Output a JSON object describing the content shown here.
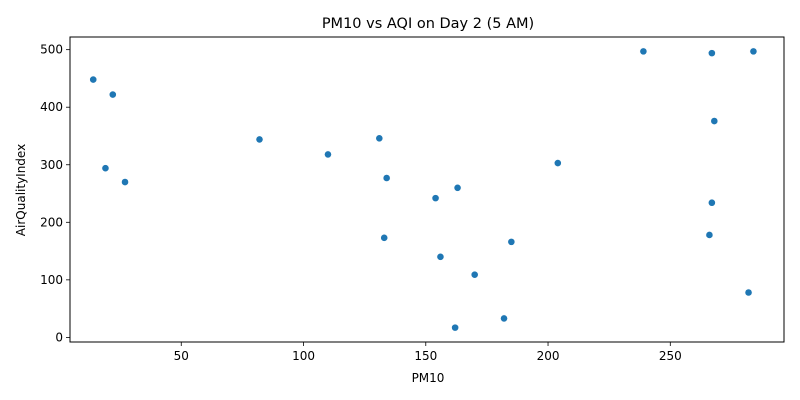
{
  "chart_data": {
    "type": "scatter",
    "title": "PM10 vs AQI on Day 2 (5 AM)",
    "xlabel": "PM10",
    "ylabel": "AirQualityIndex",
    "xlim": [
      4.5,
      296.5
    ],
    "ylim": [
      -8,
      522
    ],
    "xticks": [
      50,
      100,
      150,
      200,
      250
    ],
    "yticks": [
      0,
      100,
      200,
      300,
      400,
      500
    ],
    "grid": false,
    "color": "#1f77b4",
    "points": [
      {
        "x": 14,
        "y": 448
      },
      {
        "x": 22,
        "y": 422
      },
      {
        "x": 19,
        "y": 294
      },
      {
        "x": 27,
        "y": 270
      },
      {
        "x": 82,
        "y": 344
      },
      {
        "x": 110,
        "y": 318
      },
      {
        "x": 131,
        "y": 346
      },
      {
        "x": 134,
        "y": 277
      },
      {
        "x": 133,
        "y": 173
      },
      {
        "x": 154,
        "y": 242
      },
      {
        "x": 163,
        "y": 260
      },
      {
        "x": 156,
        "y": 140
      },
      {
        "x": 170,
        "y": 109
      },
      {
        "x": 162,
        "y": 17
      },
      {
        "x": 182,
        "y": 33
      },
      {
        "x": 185,
        "y": 166
      },
      {
        "x": 204,
        "y": 303
      },
      {
        "x": 239,
        "y": 497
      },
      {
        "x": 267,
        "y": 494
      },
      {
        "x": 284,
        "y": 497
      },
      {
        "x": 268,
        "y": 376
      },
      {
        "x": 267,
        "y": 234
      },
      {
        "x": 266,
        "y": 178
      },
      {
        "x": 282,
        "y": 78
      }
    ]
  }
}
